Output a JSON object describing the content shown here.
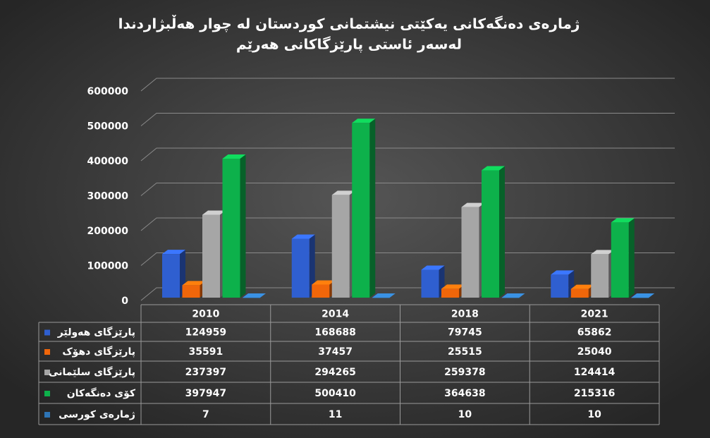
{
  "chart_data": {
    "type": "bar3d",
    "title": [
      "ژمارەی دەنگەکانی یەکێتی نیشتمانی کوردستان لە چوار هەڵبژاردندا",
      "لەسەر ئاستی پارێزگاکانی هەرێم"
    ],
    "categories": [
      "2010",
      "2014",
      "2018",
      "2021"
    ],
    "series": [
      {
        "name": "پارێزگای هەولێر",
        "color": "#2f5fd0",
        "values": [
          124959,
          168688,
          79745,
          65862
        ]
      },
      {
        "name": "پارێزگای دهۆک",
        "color": "#f0660a",
        "values": [
          35591,
          37457,
          25515,
          25040
        ]
      },
      {
        "name": "پارێزگای سلێمانی",
        "color": "#a6a6a6",
        "values": [
          237397,
          294265,
          259378,
          124414
        ]
      },
      {
        "name": "کۆی دەنگەکان",
        "color": "#0db14b",
        "values": [
          397947,
          500410,
          364638,
          215316
        ]
      },
      {
        "name": "ژمارەی کورسی",
        "color": "#2e75b6",
        "values": [
          7,
          11,
          10,
          10
        ]
      }
    ],
    "ylim": [
      0,
      600000
    ],
    "yticks": [
      0,
      100000,
      200000,
      300000,
      400000,
      500000,
      600000
    ],
    "grid": true,
    "data_table": true
  }
}
